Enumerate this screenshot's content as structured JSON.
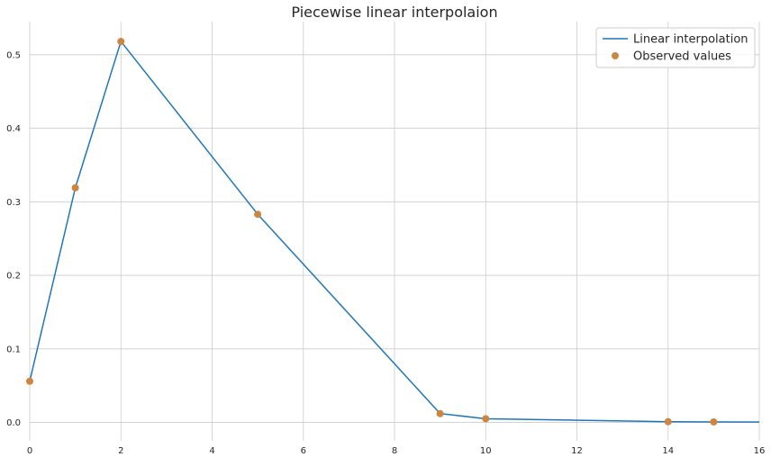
{
  "chart_data": {
    "type": "line",
    "title": "Piecewise linear interpolaion",
    "xlabel": "",
    "ylabel": "",
    "xlim": [
      0,
      16
    ],
    "ylim": [
      -0.025,
      0.545
    ],
    "xticks": [
      0,
      2,
      4,
      6,
      8,
      10,
      12,
      14,
      16
    ],
    "yticks": [
      0.0,
      0.1,
      0.2,
      0.3,
      0.4,
      0.5
    ],
    "xtick_labels": [
      "0",
      "2",
      "4",
      "6",
      "8",
      "10",
      "12",
      "14",
      "16"
    ],
    "ytick_labels": [
      "0.0",
      "0.1",
      "0.2",
      "0.3",
      "0.4",
      "0.5"
    ],
    "grid": true,
    "legend_position": "top-right",
    "series": [
      {
        "name": "Linear interpolation",
        "kind": "line",
        "color": "#1f77b4",
        "x": [
          0,
          1,
          2,
          5,
          9,
          10,
          14,
          15,
          16
        ],
        "y": [
          0.056,
          0.319,
          0.518,
          0.283,
          0.012,
          0.005,
          0.001,
          0.0007,
          0.0005
        ]
      },
      {
        "name": "Observed values",
        "kind": "scatter",
        "color": "#cd853f",
        "x": [
          0,
          1,
          2,
          5,
          9,
          10,
          14,
          15
        ],
        "y": [
          0.056,
          0.319,
          0.518,
          0.283,
          0.012,
          0.005,
          0.001,
          0.0007
        ]
      }
    ]
  }
}
